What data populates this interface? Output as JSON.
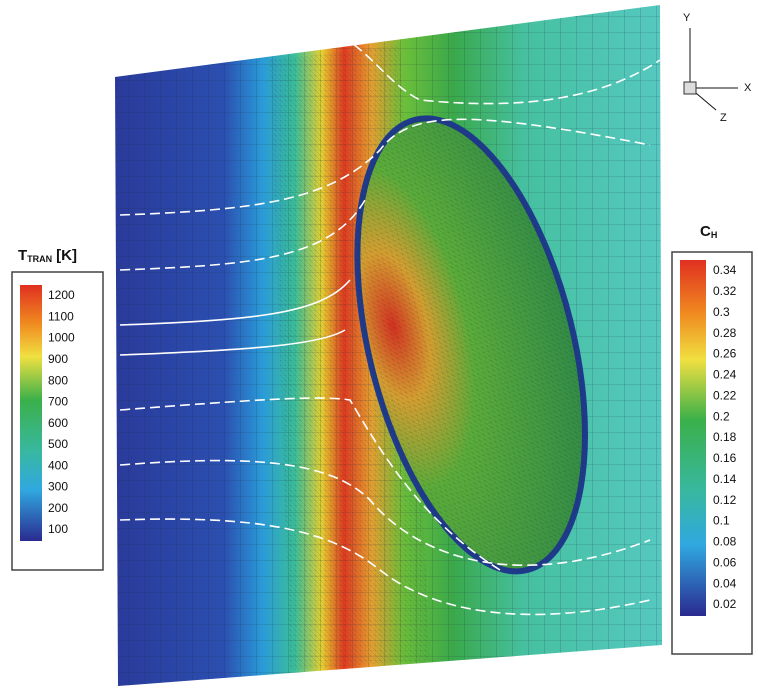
{
  "left_legend": {
    "title": "T",
    "subscript": "TRAN",
    "unit": "[K]",
    "labels": [
      "1200",
      "1100",
      "1000",
      "900",
      "800",
      "700",
      "600",
      "500",
      "400",
      "300",
      "200",
      "100"
    ]
  },
  "right_legend": {
    "title": "C",
    "subscript": "H",
    "labels": [
      "0.34",
      "0.32",
      "0.3",
      "0.28",
      "0.26",
      "0.24",
      "0.22",
      "0.2",
      "0.18",
      "0.16",
      "0.14",
      "0.12",
      "0.1",
      "0.08",
      "0.06",
      "0.04",
      "0.02"
    ]
  },
  "axes": {
    "y": "Y",
    "x": "X",
    "z": "Z"
  }
}
